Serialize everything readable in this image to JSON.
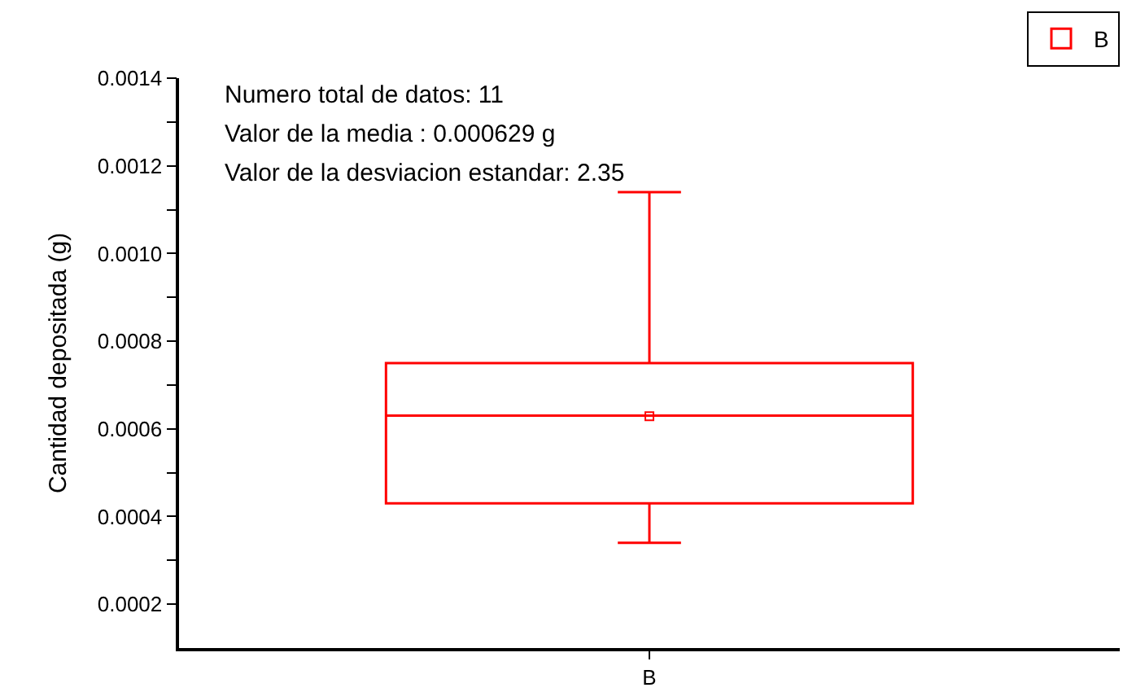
{
  "chart_data": {
    "type": "box",
    "ylabel": "Cantidad depositada (g)",
    "categories": [
      "B"
    ],
    "series": [
      {
        "name": "B",
        "color": "#ff0000",
        "boxes": [
          {
            "low": 0.00034,
            "q1": 0.00043,
            "median": 0.00063,
            "q3": 0.00075,
            "high": 0.00114,
            "mean": 0.000629
          }
        ]
      }
    ],
    "ylim": [
      0.0001,
      0.0014
    ],
    "yticks": [
      {
        "value": 0.0002,
        "label": "0.0002"
      },
      {
        "value": 0.0003,
        "label": null
      },
      {
        "value": 0.0004,
        "label": "0.0004"
      },
      {
        "value": 0.0005,
        "label": null
      },
      {
        "value": 0.0006,
        "label": "0.0006"
      },
      {
        "value": 0.0007,
        "label": null
      },
      {
        "value": 0.0008,
        "label": "0.0008"
      },
      {
        "value": 0.0009,
        "label": null
      },
      {
        "value": 0.001,
        "label": "0.0010"
      },
      {
        "value": 0.0011,
        "label": null
      },
      {
        "value": 0.0012,
        "label": "0.0012"
      },
      {
        "value": 0.0013,
        "label": null
      },
      {
        "value": 0.0014,
        "label": "0.0014"
      }
    ],
    "annotations": [
      "Numero total de datos: 11",
      "Valor de la media : 0.000629 g",
      "Valor de la desviacion estandar: 2.35"
    ],
    "legend": "top right"
  }
}
